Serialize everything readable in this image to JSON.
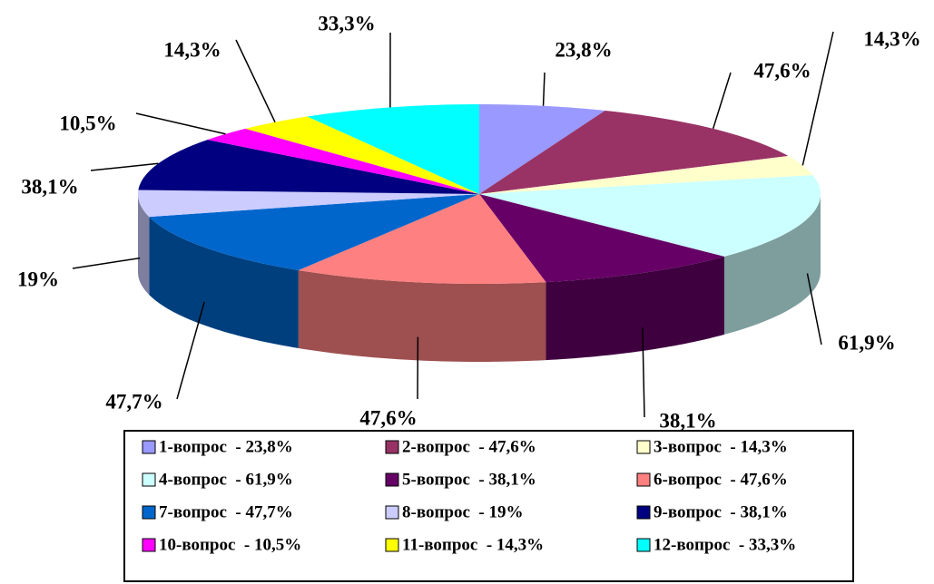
{
  "chart_data": {
    "type": "pie",
    "categories": [
      "1-вопрос  - 23,8%",
      "2-вопрос  - 47,6%",
      "3-вопрос  - 14,3%",
      "4-вопрос  - 61,9%",
      "5-вопрос  - 38,1%",
      "6-вопрос  - 47,6%",
      "7-вопрос  - 47,7%",
      "8-вопрос  - 19%",
      "9-вопрос  - 38,1%",
      "10-вопрос  - 10,5%",
      "11-вопрос  - 14,3%",
      "12-вопрос  - 33,3%"
    ],
    "values": [
      23.8,
      47.6,
      14.3,
      61.9,
      38.1,
      47.6,
      47.7,
      19,
      38.1,
      10.5,
      14.3,
      33.3
    ],
    "value_labels": [
      "23,8%",
      "47,6%",
      "14,3%",
      "61,9%",
      "38,1%",
      "47,6%",
      "47,7%",
      "19%",
      "38,1%",
      "10,5%",
      "14,3%",
      "33,3%"
    ],
    "colors": [
      "#9999ff",
      "#993366",
      "#ffffcc",
      "#ccffff",
      "#660066",
      "#ff8080",
      "#0066cc",
      "#ccccff",
      "#000080",
      "#ff00ff",
      "#ffff00",
      "#00ffff"
    ],
    "legend": "bottom"
  }
}
